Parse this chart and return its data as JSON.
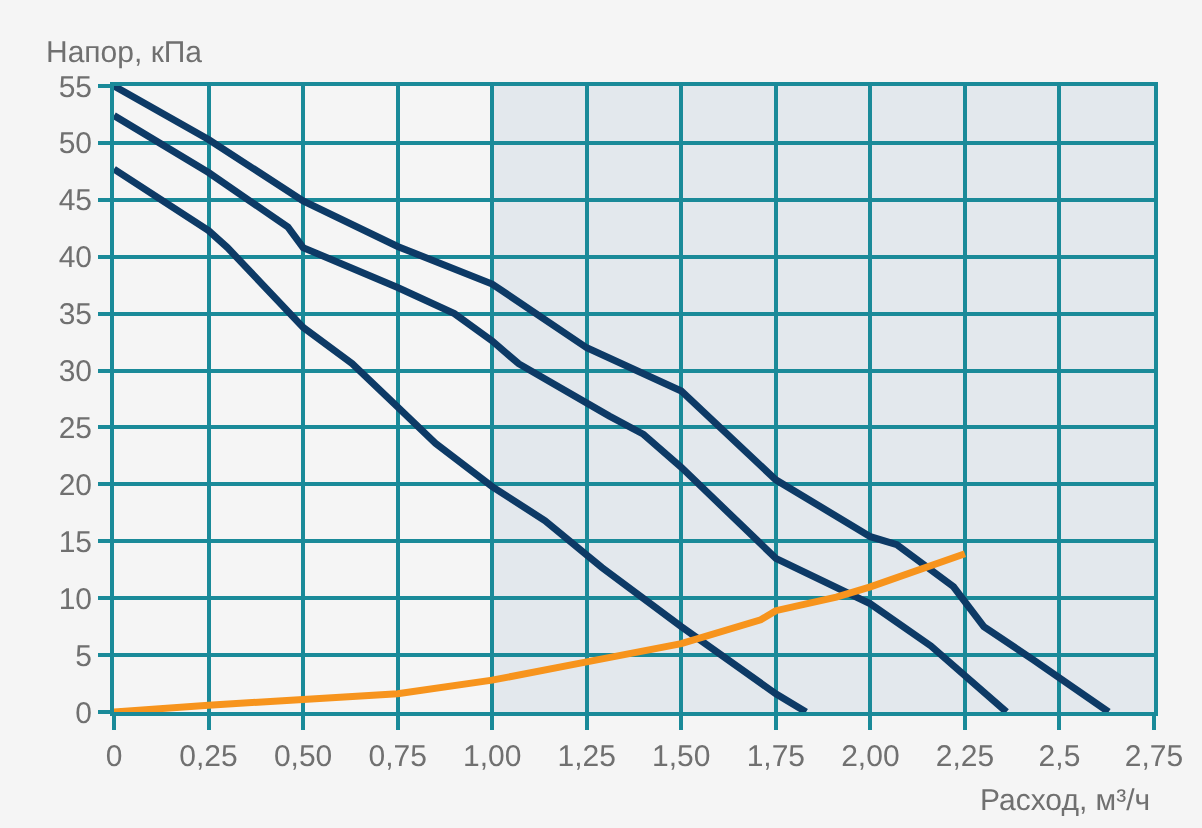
{
  "chart_data": {
    "type": "line",
    "xlabel": "Расход, м³/ч",
    "ylabel": "Напор, кПа",
    "xlim": [
      0,
      2.75
    ],
    "ylim": [
      0,
      55
    ],
    "xticks": [
      0,
      {
        "value": 0.25,
        "label": "0,25"
      },
      {
        "value": 0.5,
        "label": "0,50"
      },
      {
        "value": 0.75,
        "label": "0,75"
      },
      {
        "value": 1,
        "label": "1,00"
      },
      {
        "value": 1.25,
        "label": "1,25"
      },
      {
        "value": 1.5,
        "label": "1,50"
      },
      {
        "value": 1.75,
        "label": "1,75"
      },
      {
        "value": 2,
        "label": "2,00"
      },
      {
        "value": 2.25,
        "label": "2,25"
      },
      {
        "value": 2.5,
        "label": "2,5"
      },
      {
        "value": 2.75,
        "label": "2,75"
      }
    ],
    "yticks": [
      0,
      5,
      10,
      15,
      20,
      25,
      30,
      35,
      40,
      45,
      50,
      55
    ],
    "grid": true,
    "marker": "none",
    "line_style": "solid",
    "bands": [
      {
        "axis": "x",
        "from": 1,
        "to": 2.75,
        "color": "#e3e8ed"
      }
    ],
    "series": [
      {
        "color": "#0d3a66",
        "x": [
          0,
          0.25,
          0.5,
          0.75,
          1,
          1.25,
          1.5,
          1.75,
          2,
          2.07,
          2.22,
          2.3,
          2.43,
          2.63
        ],
        "values": [
          55,
          50.3,
          44.9,
          40.9,
          37.6,
          32,
          28.2,
          20.4,
          15.4,
          14.7,
          11,
          7.5,
          4.6,
          0
        ]
      },
      {
        "color": "#0d3a66",
        "x": [
          0,
          0.25,
          0.46,
          0.5,
          0.75,
          0.9,
          1,
          1.07,
          1.31,
          1.4,
          1.5,
          1.75,
          2,
          2.16,
          2.36
        ],
        "values": [
          52.4,
          47.4,
          42.6,
          40.8,
          37.3,
          35,
          32.6,
          30.6,
          26,
          24.4,
          21.5,
          13.5,
          9.5,
          5.8,
          0
        ]
      },
      {
        "color": "#0d3a66",
        "x": [
          0,
          0.25,
          0.3,
          0.5,
          0.63,
          0.75,
          0.85,
          1,
          1.14,
          1.29,
          1.5,
          1.75,
          1.83
        ],
        "values": [
          47.7,
          42.3,
          40.8,
          33.8,
          30.6,
          26.8,
          23.6,
          19.8,
          16.8,
          12.7,
          7.5,
          1.6,
          0
        ]
      },
      {
        "color": "#f7941d",
        "x": [
          0,
          0.25,
          0.5,
          0.75,
          1,
          1.25,
          1.5,
          1.71,
          1.75,
          1.91,
          2,
          2.25
        ],
        "values": [
          0,
          0.6,
          1.1,
          1.6,
          2.8,
          4.4,
          6,
          8.1,
          8.9,
          10.1,
          11,
          13.9
        ]
      }
    ]
  }
}
